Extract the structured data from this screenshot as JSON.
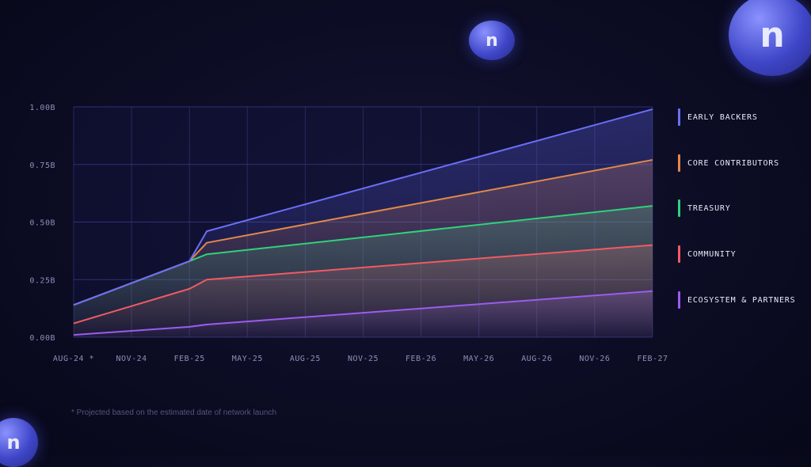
{
  "chart_data": {
    "type": "area",
    "x_labels": [
      "AUG-24 *",
      "NOV-24",
      "FEB-25",
      "MAY-25",
      "AUG-25",
      "NOV-25",
      "FEB-26",
      "MAY-26",
      "AUG-26",
      "NOV-26",
      "FEB-27"
    ],
    "y_tick_labels": [
      "0.00B",
      "0.25B",
      "0.50B",
      "0.75B",
      "1.00B"
    ],
    "ylim": [
      0,
      1.0
    ],
    "y_unit": "B",
    "grid": true,
    "legend_position": "right",
    "x_points": [
      "AUG-24 *",
      "FEB-25",
      "MAR-25",
      "FEB-27"
    ],
    "series": [
      {
        "name": "ECOSYSTEM & PARTNERS",
        "color": "#9b5cf0",
        "values": [
          0.01,
          0.045,
          0.055,
          0.2
        ]
      },
      {
        "name": "COMMUNITY",
        "color": "#f25a63",
        "values": [
          0.06,
          0.21,
          0.25,
          0.4
        ]
      },
      {
        "name": "TREASURY",
        "color": "#2fd27a",
        "values": [
          0.14,
          0.33,
          0.36,
          0.57
        ]
      },
      {
        "name": "CORE CONTRIBUTORS",
        "color": "#e2884a",
        "values": [
          0.14,
          0.33,
          0.41,
          0.77
        ]
      },
      {
        "name": "EARLY BACKERS",
        "color": "#6a6ff7",
        "values": [
          0.14,
          0.33,
          0.46,
          0.99
        ]
      }
    ],
    "x_point_index": [
      0,
      2,
      2.3,
      10
    ]
  },
  "legend": [
    {
      "label": "EARLY BACKERS",
      "color": "#6a6ff7"
    },
    {
      "label": "CORE CONTRIBUTORS",
      "color": "#e2884a"
    },
    {
      "label": "TREASURY",
      "color": "#2fd27a"
    },
    {
      "label": "COMMUNITY",
      "color": "#f25a63"
    },
    {
      "label": "ECOSYSTEM & PARTNERS",
      "color": "#9b5cf0"
    }
  ],
  "footnote": "* Projected based on the estimated date of network launch",
  "coin_glyph": "n"
}
